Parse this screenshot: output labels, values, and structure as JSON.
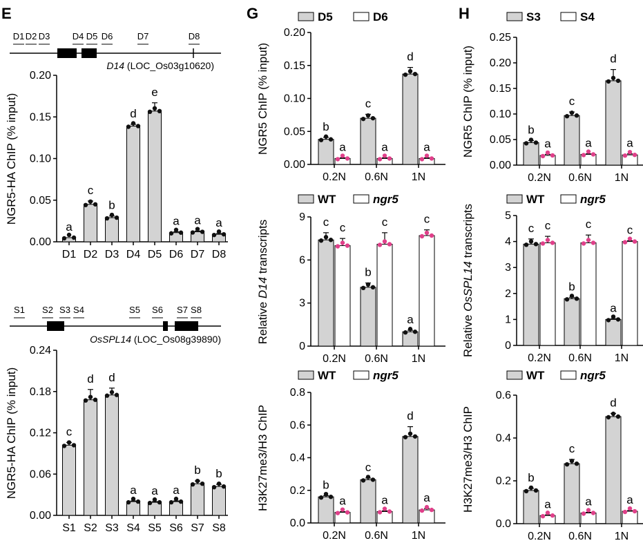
{
  "panels": {
    "E": "E",
    "G": "G",
    "H": "H"
  },
  "colors": {
    "gray": "#d3d3d3",
    "white": "#ffffff",
    "black_dot": "#111111",
    "pink_dot": "#e0408a",
    "stroke": "#000000"
  },
  "gene_d14": {
    "label_italic": "D14",
    "label_rest": " (LOC_Os03g10620)",
    "regions": [
      "D1",
      "D2",
      "D3",
      "D4",
      "D5",
      "D6",
      "D7",
      "D8"
    ]
  },
  "gene_spl14": {
    "label_italic": "OsSPL14",
    "label_rest": " (LOC_Os08g39890)",
    "regions": [
      "S1",
      "S2",
      "S3",
      "S4",
      "S5",
      "S6",
      "S7",
      "S8"
    ]
  },
  "chart_data": [
    {
      "id": "e1",
      "type": "bar",
      "ylabel": "NGR5-HA ChIP (% input)",
      "ylim": [
        0,
        0.2
      ],
      "yticks": [
        "0.00",
        "0.05",
        "0.10",
        "0.15",
        "0.20"
      ],
      "categories": [
        "D1",
        "D2",
        "D3",
        "D4",
        "D5",
        "D6",
        "D7",
        "D8"
      ],
      "series": [
        {
          "name": "NGR5-HA",
          "values": [
            0.005,
            0.045,
            0.029,
            0.139,
            0.157,
            0.011,
            0.012,
            0.009
          ],
          "errors": [
            0,
            0.004,
            0.002,
            0.002,
            0.01,
            0.001,
            0.001,
            0.001
          ],
          "letters": [
            "a",
            "c",
            "b",
            "d",
            "e",
            "a",
            "a",
            "a"
          ]
        }
      ]
    },
    {
      "id": "e2",
      "type": "bar",
      "ylabel": "NGR5-HA ChIP (% input)",
      "ylim": [
        0,
        0.24
      ],
      "yticks": [
        "0.00",
        "0.06",
        "0.12",
        "0.18",
        "0.24"
      ],
      "categories": [
        "S1",
        "S2",
        "S3",
        "S4",
        "S5",
        "S6",
        "S7",
        "S8"
      ],
      "series": [
        {
          "name": "NGR5-HA",
          "values": [
            0.102,
            0.168,
            0.175,
            0.02,
            0.019,
            0.02,
            0.046,
            0.042
          ],
          "errors": [
            0.004,
            0.015,
            0.01,
            0.001,
            0.001,
            0.001,
            0.004,
            0.003
          ],
          "letters": [
            "c",
            "d",
            "d",
            "a",
            "a",
            "a",
            "b",
            "b"
          ]
        }
      ]
    },
    {
      "id": "g1",
      "type": "bar",
      "ylabel": "NGR5 ChIP (% input)",
      "ylim": [
        0,
        0.2
      ],
      "yticks": [
        "0.00",
        "0.05",
        "0.10",
        "0.15",
        "0.20"
      ],
      "categories": [
        "0.2N",
        "0.6N",
        "1N"
      ],
      "legend": [
        "D5",
        "D6"
      ],
      "series": [
        {
          "name": "D5",
          "values": [
            0.038,
            0.07,
            0.137
          ],
          "errors": [
            0.003,
            0.006,
            0.01
          ],
          "letters": [
            "b",
            "c",
            "d"
          ]
        },
        {
          "name": "D6",
          "values": [
            0.009,
            0.009,
            0.009
          ],
          "errors": [
            0.001,
            0.001,
            0.001
          ],
          "letters": [
            "a",
            "a",
            "a"
          ]
        }
      ]
    },
    {
      "id": "g2",
      "type": "bar",
      "ylabel_pre": "Relative ",
      "ylabel_it": "D14",
      "ylabel_post": " transcripts",
      "ylim": [
        0,
        9
      ],
      "yticks": [
        "0",
        "3",
        "6",
        "9"
      ],
      "categories": [
        "0.2N",
        "0.6N",
        "1N"
      ],
      "legend": [
        "WT",
        "ngr5"
      ],
      "series": [
        {
          "name": "WT",
          "values": [
            7.4,
            4.1,
            1.0
          ],
          "errors": [
            0.5,
            0.3,
            0.1
          ],
          "letters": [
            "c",
            "b",
            "a"
          ]
        },
        {
          "name": "ngr5",
          "values": [
            7.0,
            7.1,
            7.7
          ],
          "errors": [
            0.5,
            0.8,
            0.4
          ],
          "letters": [
            "c",
            "c",
            "c"
          ]
        }
      ]
    },
    {
      "id": "g3",
      "type": "bar",
      "ylabel": "H3K27me3/H3 ChIP",
      "ylim": [
        0,
        0.8
      ],
      "yticks": [
        "0.0",
        "0.2",
        "0.4",
        "0.6",
        "0.8"
      ],
      "categories": [
        "0.2N",
        "0.6N",
        "1N"
      ],
      "legend": [
        "WT",
        "ngr5"
      ],
      "series": [
        {
          "name": "WT",
          "values": [
            0.16,
            0.265,
            0.53
          ],
          "errors": [
            0.007,
            0.01,
            0.06
          ],
          "letters": [
            "b",
            "c",
            "d"
          ]
        },
        {
          "name": "ngr5",
          "values": [
            0.065,
            0.07,
            0.08
          ],
          "errors": [
            0.004,
            0.004,
            0.008
          ],
          "letters": [
            "a",
            "a",
            "a"
          ]
        }
      ]
    },
    {
      "id": "h1",
      "type": "bar",
      "ylabel": "NGR5 ChIP (% input)",
      "ylim": [
        0,
        0.25
      ],
      "yticks": [
        "0.00",
        "0.05",
        "0.10",
        "0.15",
        "0.20",
        "0.25"
      ],
      "categories": [
        "0.2N",
        "0.6N",
        "1N"
      ],
      "legend": [
        "S3",
        "S4"
      ],
      "series": [
        {
          "name": "S3",
          "values": [
            0.044,
            0.097,
            0.165
          ],
          "errors": [
            0.004,
            0.007,
            0.022
          ],
          "letters": [
            "b",
            "c",
            "d"
          ]
        },
        {
          "name": "S4",
          "values": [
            0.019,
            0.021,
            0.02
          ],
          "errors": [
            0.002,
            0.001,
            0.002
          ],
          "letters": [
            "a",
            "a",
            "a"
          ]
        }
      ]
    },
    {
      "id": "h2",
      "type": "bar",
      "ylabel_pre": "Relative ",
      "ylabel_it": "OsSPL14",
      "ylabel_post": " transcripts",
      "ylim": [
        0,
        5
      ],
      "yticks": [
        "0",
        "1",
        "2",
        "3",
        "4",
        "5"
      ],
      "categories": [
        "0.2N",
        "0.6N",
        "1N"
      ],
      "legend": [
        "WT",
        "ngr5"
      ],
      "series": [
        {
          "name": "WT",
          "values": [
            3.9,
            1.8,
            1.0
          ],
          "errors": [
            0.2,
            0.05,
            0.03
          ],
          "letters": [
            "c",
            "b",
            "a"
          ]
        },
        {
          "name": "ngr5",
          "values": [
            3.95,
            3.95,
            4.0
          ],
          "errors": [
            0.25,
            0.3,
            0.03
          ],
          "letters": [
            "c",
            "c",
            "c"
          ]
        }
      ]
    },
    {
      "id": "h3",
      "type": "bar",
      "ylabel": "H3K27me3/H3 ChIP",
      "ylim": [
        0,
        0.6
      ],
      "yticks": [
        "0.0",
        "0.2",
        "0.4",
        "0.6"
      ],
      "categories": [
        "0.2N",
        "0.6N",
        "1N"
      ],
      "legend": [
        "WT",
        "ngr5"
      ],
      "series": [
        {
          "name": "WT",
          "values": [
            0.155,
            0.28,
            0.5
          ],
          "errors": [
            0.01,
            0.02,
            0.015
          ],
          "letters": [
            "b",
            "c",
            "d"
          ]
        },
        {
          "name": "ngr5",
          "values": [
            0.038,
            0.05,
            0.058
          ],
          "errors": [
            0.003,
            0.003,
            0.003
          ],
          "letters": [
            "a",
            "a",
            "a"
          ]
        }
      ]
    }
  ]
}
